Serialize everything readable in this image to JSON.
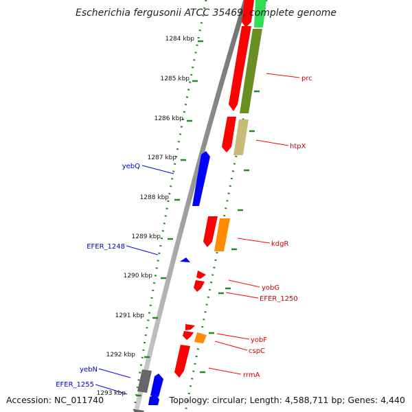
{
  "title": "Escherichia fergusonii ATCC 35469, complete genome",
  "accession": "Accession: NC_011740",
  "topology": "Topology: circular; Length: 4,588,711 bp; Genes: 4,440",
  "colors": {
    "forward": "#ff0000",
    "reverse": "#0000ff",
    "grey": "#666666",
    "orange": "#ff8c00",
    "olive": "#6b8e23",
    "khaki": "#c8bc7a",
    "lightgreen": "#33dd55",
    "tick": "#228b22"
  },
  "kbp_labels": [
    "1284 kbp",
    "1285 kbp",
    "1286 kbp",
    "1287 kbp",
    "1288 kbp",
    "1289 kbp",
    "1290 kbp",
    "1291 kbp",
    "1292 kbp",
    "1293 kbp"
  ],
  "gene_labels": [
    {
      "text": "prc",
      "strand": "forward"
    },
    {
      "text": "htpX",
      "strand": "forward"
    },
    {
      "text": "kdgR",
      "strand": "forward"
    },
    {
      "text": "yobG",
      "strand": "forward"
    },
    {
      "text": "EFER_1250",
      "strand": "forward"
    },
    {
      "text": "yobF",
      "strand": "forward"
    },
    {
      "text": "cspC",
      "strand": "forward"
    },
    {
      "text": "rrmA",
      "strand": "forward"
    },
    {
      "text": "yebQ",
      "strand": "reverse"
    },
    {
      "text": "EFER_1248",
      "strand": "reverse"
    },
    {
      "text": "yebN",
      "strand": "reverse"
    },
    {
      "text": "EFER_1255",
      "strand": "reverse"
    }
  ]
}
